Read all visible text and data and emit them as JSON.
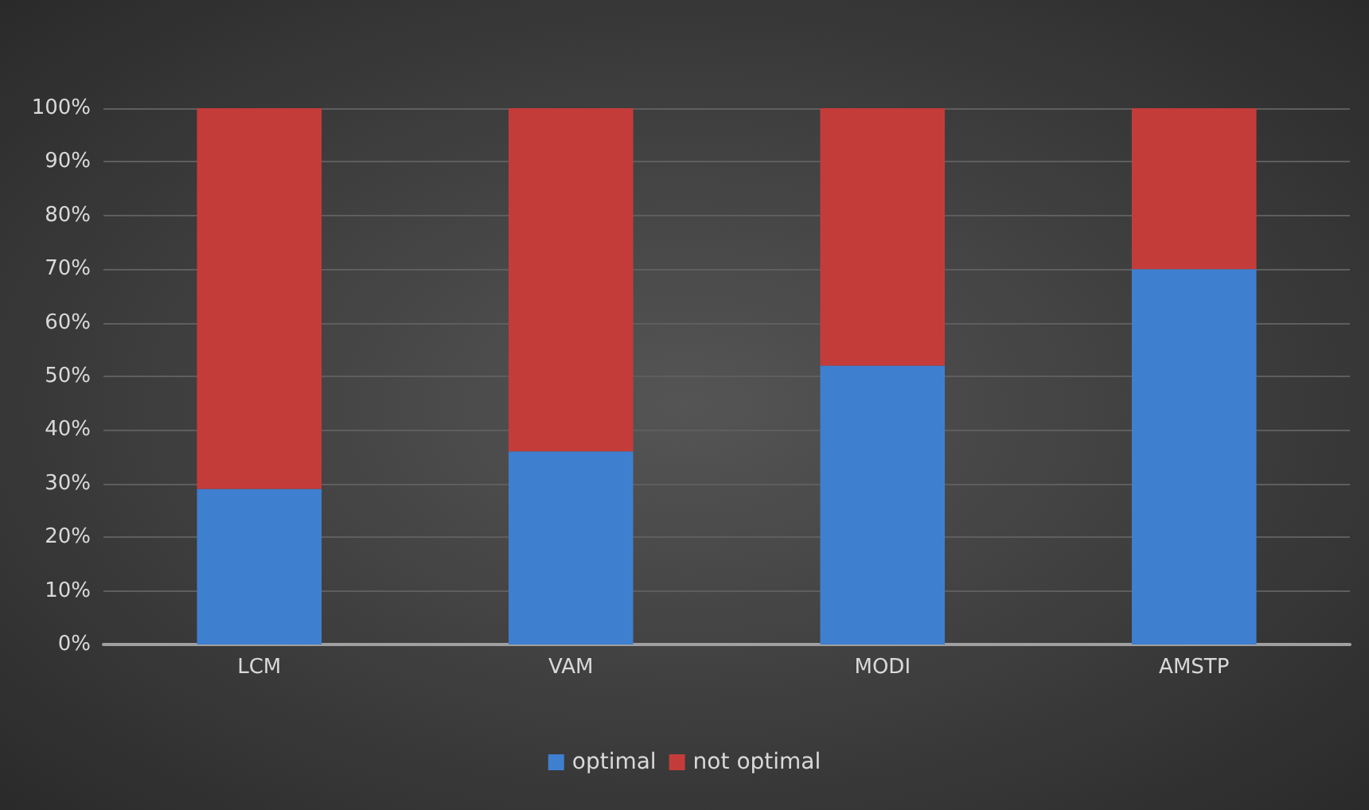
{
  "chart_data": {
    "type": "bar",
    "stacked": true,
    "categories": [
      "LCM",
      "VAM",
      "MODI",
      "AMSTP"
    ],
    "series": [
      {
        "name": "optimal",
        "color": "#3f7fcf",
        "values": [
          29,
          36,
          52,
          70
        ]
      },
      {
        "name": "not optimal",
        "color": "#c43c3a",
        "values": [
          71,
          64,
          48,
          30
        ]
      }
    ],
    "ylim": [
      0,
      100
    ],
    "yticks": [
      {
        "value": 0,
        "label": "0%"
      },
      {
        "value": 10,
        "label": "10%"
      },
      {
        "value": 20,
        "label": "20%"
      },
      {
        "value": 30,
        "label": "30%"
      },
      {
        "value": 40,
        "label": "40%"
      },
      {
        "value": 50,
        "label": "50%"
      },
      {
        "value": 60,
        "label": "60%"
      },
      {
        "value": 70,
        "label": "70%"
      },
      {
        "value": 80,
        "label": "80%"
      },
      {
        "value": 90,
        "label": "90%"
      },
      {
        "value": 100,
        "label": "100%"
      }
    ],
    "grid": "y",
    "legend": "bottom"
  }
}
